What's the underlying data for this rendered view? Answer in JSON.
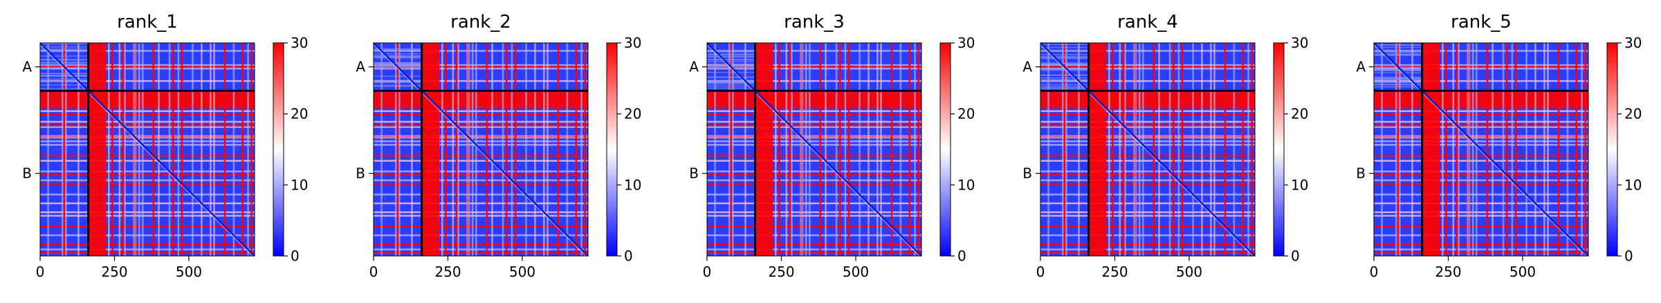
{
  "chart_data": {
    "type": "heatmap",
    "colormap": "bwr",
    "value_range": [
      0,
      30
    ],
    "colorbar_ticks": [
      0,
      10,
      20,
      30
    ],
    "x_ticks": [
      0,
      250,
      500
    ],
    "x_range": [
      0,
      721
    ],
    "y_ticks": [
      "A",
      "B"
    ],
    "chains": [
      {
        "name": "A",
        "start": 0,
        "end": 162
      },
      {
        "name": "B",
        "start": 162,
        "end": 721
      }
    ],
    "panels": [
      {
        "title": "rank_1"
      },
      {
        "title": "rank_2"
      },
      {
        "title": "rank_3"
      },
      {
        "title": "rank_4"
      },
      {
        "title": "rank_5"
      }
    ]
  }
}
